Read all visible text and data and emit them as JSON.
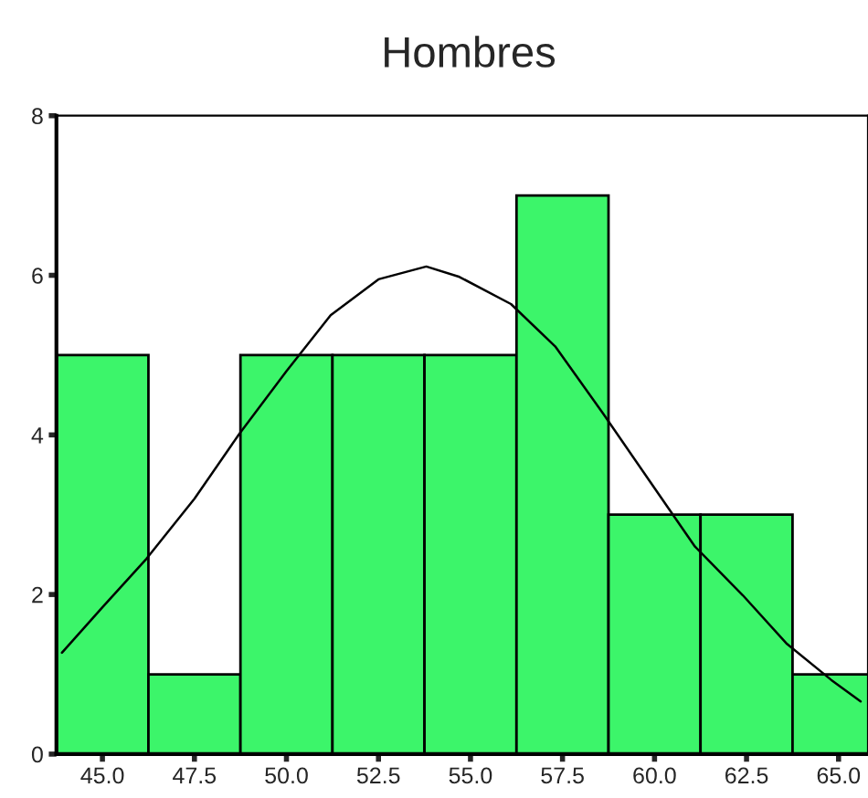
{
  "chart_data": {
    "type": "histogram",
    "title": "Hombres",
    "bins": [
      43.75,
      46.25,
      48.75,
      51.25,
      53.75,
      56.25,
      58.75,
      61.25,
      63.75,
      66.25
    ],
    "values": [
      5,
      1,
      5,
      5,
      5,
      7,
      3,
      3,
      1
    ],
    "color": "#3cf56a",
    "series": [
      {
        "type": "line",
        "color": "#000000",
        "x": [
          43.9,
          45.0,
          46.2,
          47.5,
          48.7,
          50.0,
          51.2,
          52.5,
          53.8,
          54.7,
          56.1,
          57.3,
          58.6,
          59.9,
          61.1,
          62.4,
          63.6,
          64.8,
          65.6
        ],
        "values": [
          1.27,
          1.84,
          2.45,
          3.2,
          4.0,
          4.8,
          5.5,
          5.95,
          6.11,
          5.98,
          5.64,
          5.11,
          4.27,
          3.4,
          2.6,
          1.99,
          1.38,
          0.93,
          0.66
        ]
      }
    ],
    "xlim": [
      43.75,
      65.8
    ],
    "xticks": [
      {
        "value": 45,
        "label": "45.0"
      },
      {
        "value": 47.5,
        "label": "47.5"
      },
      {
        "value": 50,
        "label": "50.0"
      },
      {
        "value": 52.5,
        "label": "52.5"
      },
      {
        "value": 55,
        "label": "55.0"
      },
      {
        "value": 57.5,
        "label": "57.5"
      },
      {
        "value": 60,
        "label": "60.0"
      },
      {
        "value": 62.5,
        "label": "62.5"
      },
      {
        "value": 65,
        "label": "65.0"
      }
    ],
    "ylim": [
      0,
      8
    ],
    "yticks": [
      0,
      2,
      4,
      6,
      8
    ],
    "grid": false
  }
}
